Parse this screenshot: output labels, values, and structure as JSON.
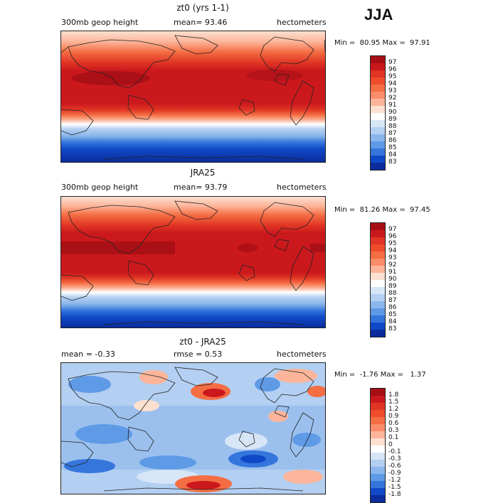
{
  "season": "JJA",
  "panels": [
    {
      "title": "zt0 (yrs 1-1)",
      "left_label": "300mb geop height",
      "center_label": "mean=  93.46",
      "right_label": "hectometers",
      "minmax": "Min =  80.95 Max =  97.91",
      "colorbar_labels": [
        "97",
        "96",
        "95",
        "94",
        "93",
        "92",
        "91",
        "90",
        "89",
        "88",
        "87",
        "86",
        "85",
        "84",
        "83"
      ],
      "colorbar_colors": [
        "#a50f15",
        "#cb181d",
        "#e03524",
        "#ef4c2c",
        "#f46d43",
        "#fb8d6a",
        "#fcb59a",
        "#fde0d0",
        "#ffffff",
        "#d6e6f7",
        "#b3cff1",
        "#8ab6ec",
        "#5f9ae6",
        "#3476dc",
        "#1049c8",
        "#0a2c9c"
      ]
    },
    {
      "title": "JRA25",
      "left_label": "300mb geop height",
      "center_label": "mean=  93.79",
      "right_label": "hectometers",
      "minmax": "Min =  81.26 Max =  97.45",
      "colorbar_labels": [
        "97",
        "96",
        "95",
        "94",
        "93",
        "92",
        "91",
        "90",
        "89",
        "88",
        "87",
        "86",
        "85",
        "84",
        "83"
      ],
      "colorbar_colors": [
        "#a50f15",
        "#cb181d",
        "#e03524",
        "#ef4c2c",
        "#f46d43",
        "#fb8d6a",
        "#fcb59a",
        "#fde0d0",
        "#ffffff",
        "#d6e6f7",
        "#b3cff1",
        "#8ab6ec",
        "#5f9ae6",
        "#3476dc",
        "#1049c8",
        "#0a2c9c"
      ]
    },
    {
      "title": "zt0 - JRA25",
      "left_label": "mean =  -0.33",
      "center_label": "rmse =   0.53",
      "right_label": "hectometers",
      "minmax": "Min =  -1.76 Max =   1.37",
      "colorbar_labels": [
        "1.8",
        "1.5",
        "1.2",
        "0.9",
        "0.6",
        "0.3",
        "0.1",
        "0",
        "-0.1",
        "-0.3",
        "-0.6",
        "-0.9",
        "-1.2",
        "-1.5",
        "-1.8"
      ],
      "colorbar_colors": [
        "#a50f15",
        "#cb181d",
        "#e03524",
        "#ef4c2c",
        "#f46d43",
        "#fb8d6a",
        "#fcb59a",
        "#fde0d0",
        "#ffffff",
        "#d6e6f7",
        "#b3cff1",
        "#8ab6ec",
        "#5f9ae6",
        "#3476dc",
        "#1049c8",
        "#0a2c9c"
      ]
    }
  ]
}
